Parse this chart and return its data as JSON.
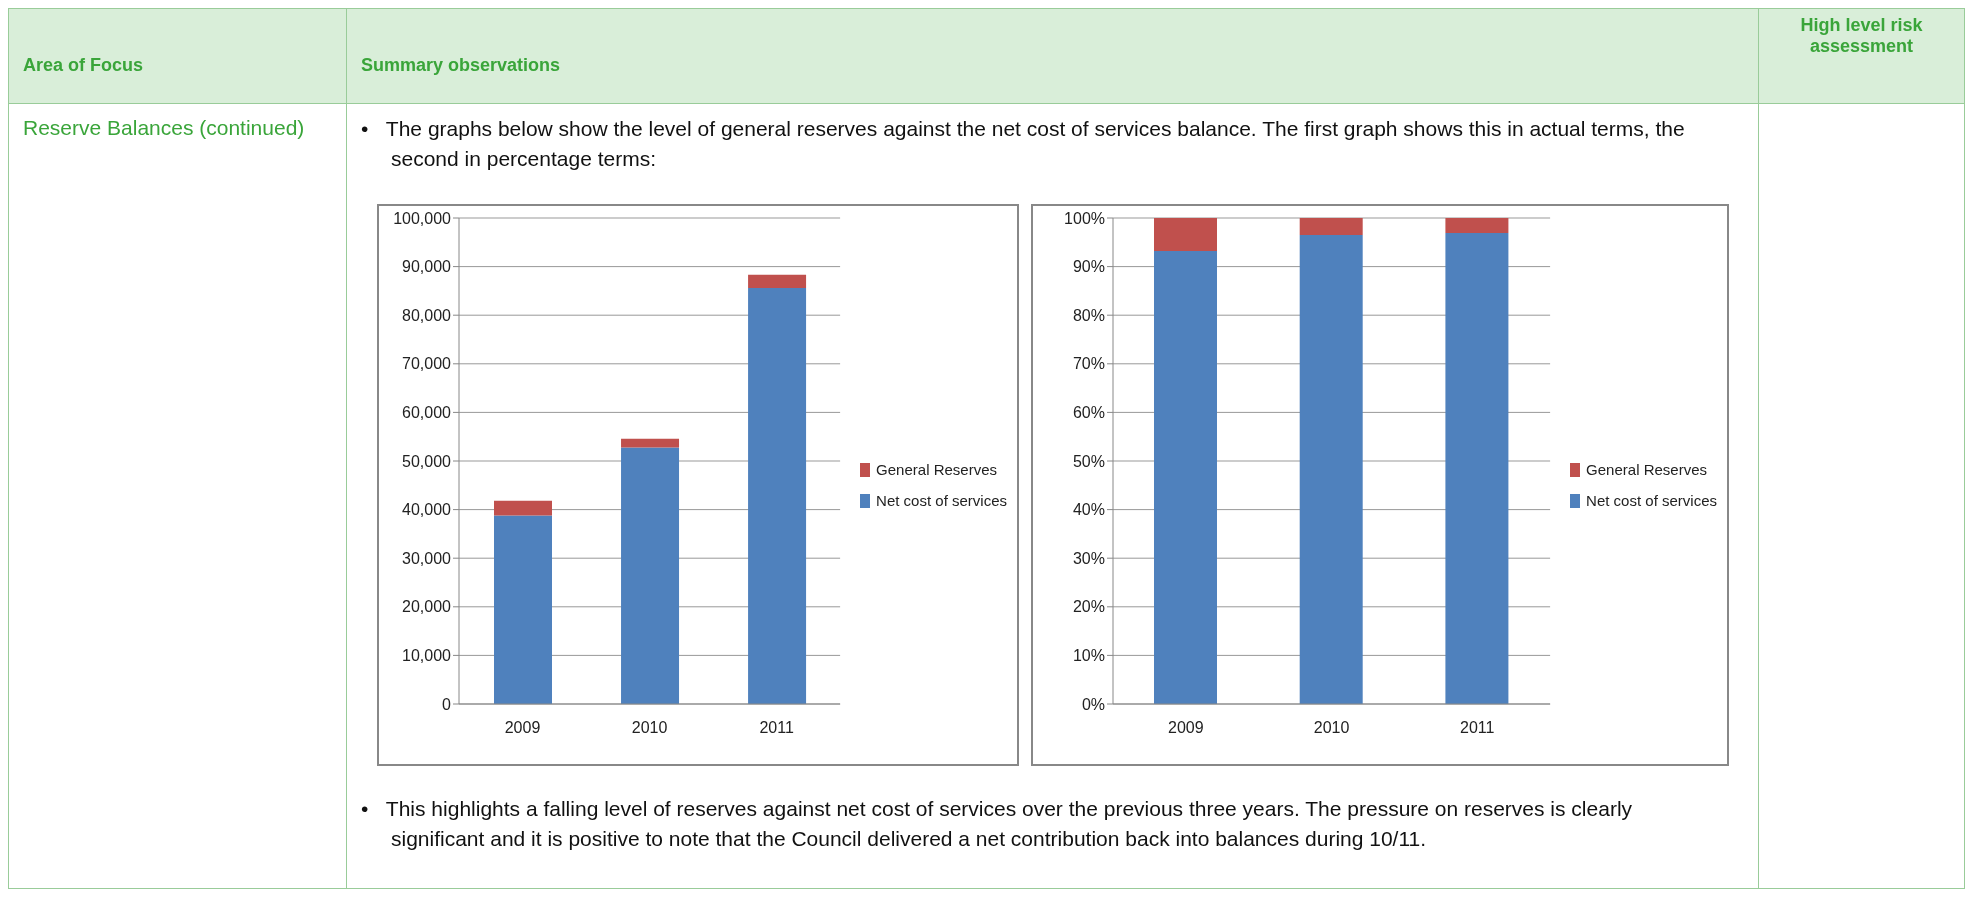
{
  "chart_data": [
    {
      "type": "other",
      "annotations": [
        "Area of Focus",
        "Summary observations",
        "High level risk assessment",
        "Reserve Balances (continued)",
        "•   The graphs below show the level of general reserves against the net cost of services balance. The first graph shows this in actual terms, the second in percentage terms:",
        "•   This highlights a falling level of reserves against net cost of services over the previous three years. The pressure on reserves is clearly significant and it is positive to note that the Council delivered a net contribution back into balances during 10/11."
      ]
    },
    {
      "type": "bar",
      "stacked": true,
      "categories": [
        "2009",
        "2010",
        "2011"
      ],
      "series": [
        {
          "name": "Net cost of services",
          "color": "#4f81bd",
          "values": [
            38800,
            52800,
            85600
          ]
        },
        {
          "name": "General Reserves",
          "color": "#c0504d",
          "values": [
            3000,
            1800,
            2700
          ]
        }
      ],
      "ylim": [
        0,
        100000
      ],
      "yticks": [
        {
          "value": 0,
          "label": "0"
        },
        {
          "value": 10000,
          "label": "10,000"
        },
        {
          "value": 20000,
          "label": "20,000"
        },
        {
          "value": 30000,
          "label": "30,000"
        },
        {
          "value": 40000,
          "label": "40,000"
        },
        {
          "value": 50000,
          "label": "50,000"
        },
        {
          "value": 60000,
          "label": "60,000"
        },
        {
          "value": 70000,
          "label": "70,000"
        },
        {
          "value": 80000,
          "label": "80,000"
        },
        {
          "value": 90000,
          "label": "90,000"
        },
        {
          "value": 100000,
          "label": "100,000"
        }
      ],
      "grid": "y",
      "legend": "right"
    },
    {
      "type": "bar",
      "stacked": true,
      "categories": [
        "2009",
        "2010",
        "2011"
      ],
      "series": [
        {
          "name": "Net cost of services",
          "color": "#4f81bd",
          "values": [
            93.2,
            96.5,
            96.9
          ]
        },
        {
          "name": "General Reserves",
          "color": "#c0504d",
          "values": [
            6.8,
            3.5,
            3.1
          ]
        }
      ],
      "ylim": [
        0,
        100
      ],
      "yticks": [
        {
          "value": 0,
          "label": "0%"
        },
        {
          "value": 10,
          "label": "10%"
        },
        {
          "value": 20,
          "label": "20%"
        },
        {
          "value": 30,
          "label": "30%"
        },
        {
          "value": 40,
          "label": "40%"
        },
        {
          "value": 50,
          "label": "50%"
        },
        {
          "value": 60,
          "label": "60%"
        },
        {
          "value": 70,
          "label": "70%"
        },
        {
          "value": 80,
          "label": "80%"
        },
        {
          "value": 90,
          "label": "90%"
        },
        {
          "value": 100,
          "label": "100%"
        }
      ],
      "grid": "y",
      "legend": "right"
    }
  ]
}
